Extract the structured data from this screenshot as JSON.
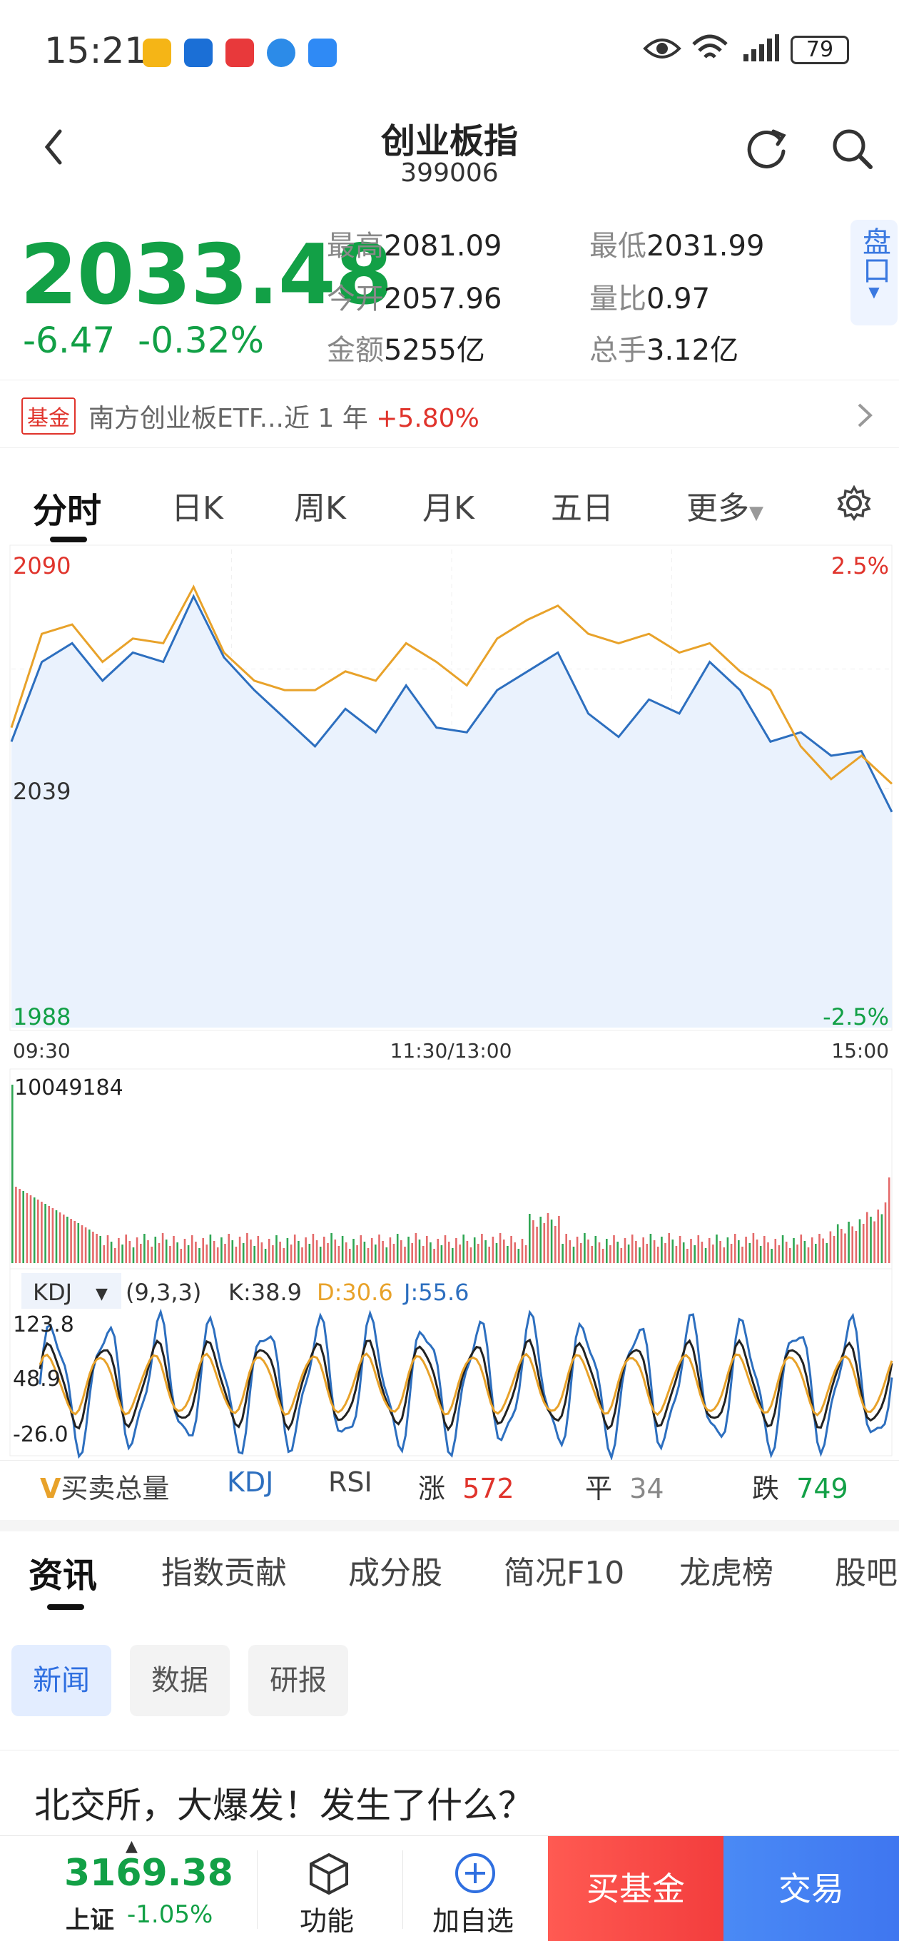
{
  "status_bar": {
    "time": "15:21",
    "battery": "79",
    "app_icons": [
      {
        "name": "weibo-app-icon",
        "color": "#f5b516"
      },
      {
        "name": "news-app-icon",
        "color": "#1b6fd6"
      },
      {
        "name": "huawei-app-icon",
        "color": "#e8393b"
      },
      {
        "name": "browser-app-icon",
        "color": "#2c8be8"
      },
      {
        "name": "cloud-app-icon",
        "color": "#2f8af5"
      }
    ]
  },
  "header": {
    "title": "创业板指",
    "code": "399006"
  },
  "quote": {
    "price": "2033.48",
    "change": "-6.47",
    "change_pct": "-0.32%",
    "stats": [
      {
        "label": "最高",
        "value": "2081.09"
      },
      {
        "label": "最低",
        "value": "2031.99"
      },
      {
        "label": "今开",
        "value": "2057.96"
      },
      {
        "label": "量比",
        "value": "0.97"
      },
      {
        "label": "金额",
        "value": "5255亿"
      },
      {
        "label": "总手",
        "value": "3.12亿"
      }
    ],
    "pankou": "盘口"
  },
  "fund": {
    "tag": "基金",
    "text": "南方创业板ETF...近 1 年",
    "return": "+5.80%"
  },
  "tabs": [
    "分时",
    "日K",
    "周K",
    "月K",
    "五日",
    "更多"
  ],
  "chart_data": {
    "type": "line",
    "price_axis": {
      "top": "2090",
      "mid": "2039",
      "bottom": "1988",
      "top_pct": "2.5%",
      "bottom_pct": "-2.5%"
    },
    "time_axis": [
      "09:30",
      "11:30/13:00",
      "15:00"
    ],
    "ylim": [
      1988,
      2090
    ],
    "series": [
      {
        "values": [
          2049,
          2066,
          2070,
          2062,
          2068,
          2066,
          2080,
          2067,
          2060,
          2054,
          2048,
          2056,
          2051,
          2061,
          2052,
          2051,
          2060,
          2064,
          2068,
          2055,
          2050,
          2058,
          2055,
          2066,
          2060,
          2049,
          2051,
          2046,
          2047,
          2034
        ]
      },
      {
        "values": [
          2052,
          2072,
          2074,
          2066,
          2071,
          2070,
          2082,
          2068,
          2062,
          2060,
          2060,
          2064,
          2062,
          2070,
          2066,
          2061,
          2071,
          2075,
          2078,
          2072,
          2070,
          2072,
          2068,
          2070,
          2064,
          2060,
          2048,
          2041,
          2046,
          2040
        ]
      }
    ],
    "volume_peak_label": "10049184",
    "kdj": {
      "label": "KDJ",
      "params": "(9,3,3)",
      "k": "K:38.9",
      "d": "D:30.6",
      "j": "J:55.6",
      "axis": [
        "123.8",
        "48.9",
        "-26.0"
      ]
    }
  },
  "indicators": {
    "vol_label": "买卖总量",
    "kdj": "KDJ",
    "rsi": "RSI",
    "up_label": "涨",
    "up": "572",
    "flat_label": "平",
    "flat": "34",
    "down_label": "跌",
    "down": "749"
  },
  "sub_tabs": [
    "资讯",
    "指数贡献",
    "成分股",
    "简况F10",
    "龙虎榜",
    "股吧"
  ],
  "chips": [
    "新闻",
    "数据",
    "研报"
  ],
  "news": {
    "title": "北交所，大爆发！发生了什么？"
  },
  "footer": {
    "index_value": "3169.38",
    "index_name": "上证",
    "index_change": "-1.05%",
    "func_label": "功能",
    "add_label": "加自选",
    "buy_fund_label": "买基金",
    "trade_label": "交易"
  }
}
